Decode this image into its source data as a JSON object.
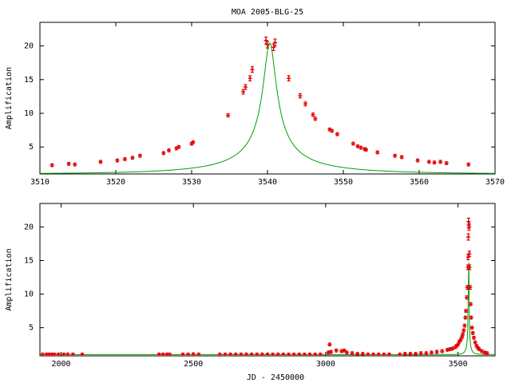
{
  "title": "MOA 2005-BLG-25",
  "colors": {
    "model": "#00a000",
    "data": "#e00000",
    "axis": "#000000",
    "background": "#ffffff"
  },
  "chart_data": [
    {
      "type": "scatter",
      "title": "MOA 2005-BLG-25",
      "xlabel": "",
      "ylabel": "Amplification",
      "xlim": [
        3510,
        3570
      ],
      "ylim": [
        1,
        23.5
      ],
      "xticks": [
        3510,
        3520,
        3530,
        3540,
        3550,
        3560,
        3570
      ],
      "yticks": [
        5,
        10,
        15,
        20
      ],
      "grid": false,
      "model": {
        "t0": 3540.3,
        "tE": 17,
        "u0": 0.049
      },
      "series": [
        {
          "x": [
            3511.6,
            3513.8,
            3514.6,
            3518,
            3520.2,
            3521.2,
            3522.2,
            3523.2,
            3526.3,
            3527.0,
            3528.0,
            3528.3,
            3530.0,
            3530.2,
            3534.8,
            3536.8,
            3537.1,
            3537.7,
            3538.0,
            3539.8,
            3540.0,
            3540.8,
            3541.0,
            3542.8,
            3544.3,
            3545.0,
            3546.0,
            3546.3,
            3548.2,
            3548.5,
            3549.2,
            3551.3,
            3551.9,
            3552.3,
            3552.8,
            3553.0,
            3554.5,
            3556.8,
            3557.7,
            3559.8,
            3561.3,
            3562.0,
            3562.8,
            3563.6,
            3566.5
          ],
          "y": [
            2.3,
            2.5,
            2.4,
            2.8,
            3.0,
            3.2,
            3.4,
            3.7,
            4.1,
            4.5,
            4.8,
            5.0,
            5.5,
            5.7,
            9.7,
            13.2,
            13.9,
            15.2,
            16.5,
            20.8,
            20.2,
            19.8,
            20.5,
            15.2,
            12.6,
            11.4,
            9.8,
            9.2,
            7.6,
            7.4,
            6.9,
            5.5,
            5.1,
            4.9,
            4.7,
            4.6,
            4.2,
            3.7,
            3.5,
            3.0,
            2.8,
            2.7,
            2.8,
            2.6,
            2.4
          ]
        }
      ]
    },
    {
      "type": "scatter",
      "title": "",
      "xlabel": "JD - 2450000",
      "ylabel": "Amplification",
      "xlim": [
        1920,
        3640
      ],
      "ylim": [
        0.8,
        23.5
      ],
      "xticks": [
        2000,
        2500,
        3000,
        3500
      ],
      "yticks": [
        5,
        10,
        15,
        20
      ],
      "grid": false,
      "model": {
        "t0": 3540.3,
        "tE": 17,
        "u0": 0.049
      },
      "series": [
        {
          "x": [
            1930,
            1945,
            1955,
            1965,
            1975,
            1990,
            2010,
            2025,
            2045,
            2080,
            2370,
            2385,
            2400,
            2410,
            2460,
            2480,
            2500,
            2520,
            2600,
            2620,
            2640,
            2660,
            2680,
            2700,
            2720,
            2740,
            2760,
            2780,
            2800,
            2820,
            2840,
            2860,
            2880,
            2900,
            2920,
            2940,
            2960,
            2980,
            3010,
            3015,
            3020,
            3040,
            3060,
            3070,
            3080,
            3100,
            3120,
            3140,
            3160,
            3180,
            3200,
            3220,
            3240,
            3280,
            3300,
            3320,
            3340,
            3360,
            3380,
            3400,
            3420,
            3440,
            3460,
            3470,
            3480,
            3490,
            3495,
            3500,
            3505,
            3510,
            3515,
            3518,
            3522,
            3525,
            3528,
            3530,
            3533,
            3535,
            3537,
            3538,
            3539,
            3540,
            3541,
            3542,
            3543,
            3544,
            3546,
            3548,
            3550,
            3553,
            3556,
            3560,
            3565,
            3570,
            3575,
            3580,
            3590,
            3600,
            3610
          ],
          "y": [
            1.0,
            1.0,
            1.0,
            1.0,
            1.0,
            1.0,
            1.0,
            1.0,
            1.0,
            1.0,
            1.0,
            1.0,
            1.0,
            1.0,
            1.0,
            1.0,
            1.0,
            1.0,
            1.0,
            1.0,
            1.0,
            1.0,
            1.0,
            1.0,
            1.0,
            1.0,
            1.0,
            1.0,
            1.0,
            1.0,
            1.0,
            1.0,
            1.0,
            1.0,
            1.0,
            1.0,
            1.0,
            1.0,
            1.3,
            2.5,
            1.4,
            1.6,
            1.5,
            1.6,
            1.3,
            1.2,
            1.1,
            1.1,
            1.0,
            1.0,
            1.0,
            1.0,
            1.0,
            1.0,
            1.1,
            1.1,
            1.1,
            1.2,
            1.2,
            1.3,
            1.4,
            1.5,
            1.7,
            1.8,
            1.9,
            2.1,
            2.3,
            2.5,
            2.9,
            3.2,
            3.6,
            4.0,
            4.6,
            5.3,
            6.5,
            7.5,
            9.5,
            11.0,
            14.0,
            15.5,
            18.5,
            20.8,
            20.3,
            20.0,
            16.0,
            14.0,
            11.0,
            8.5,
            6.5,
            5.0,
            4.2,
            3.5,
            2.8,
            2.3,
            2.0,
            1.8,
            1.5,
            1.3,
            1.2
          ]
        }
      ]
    }
  ]
}
